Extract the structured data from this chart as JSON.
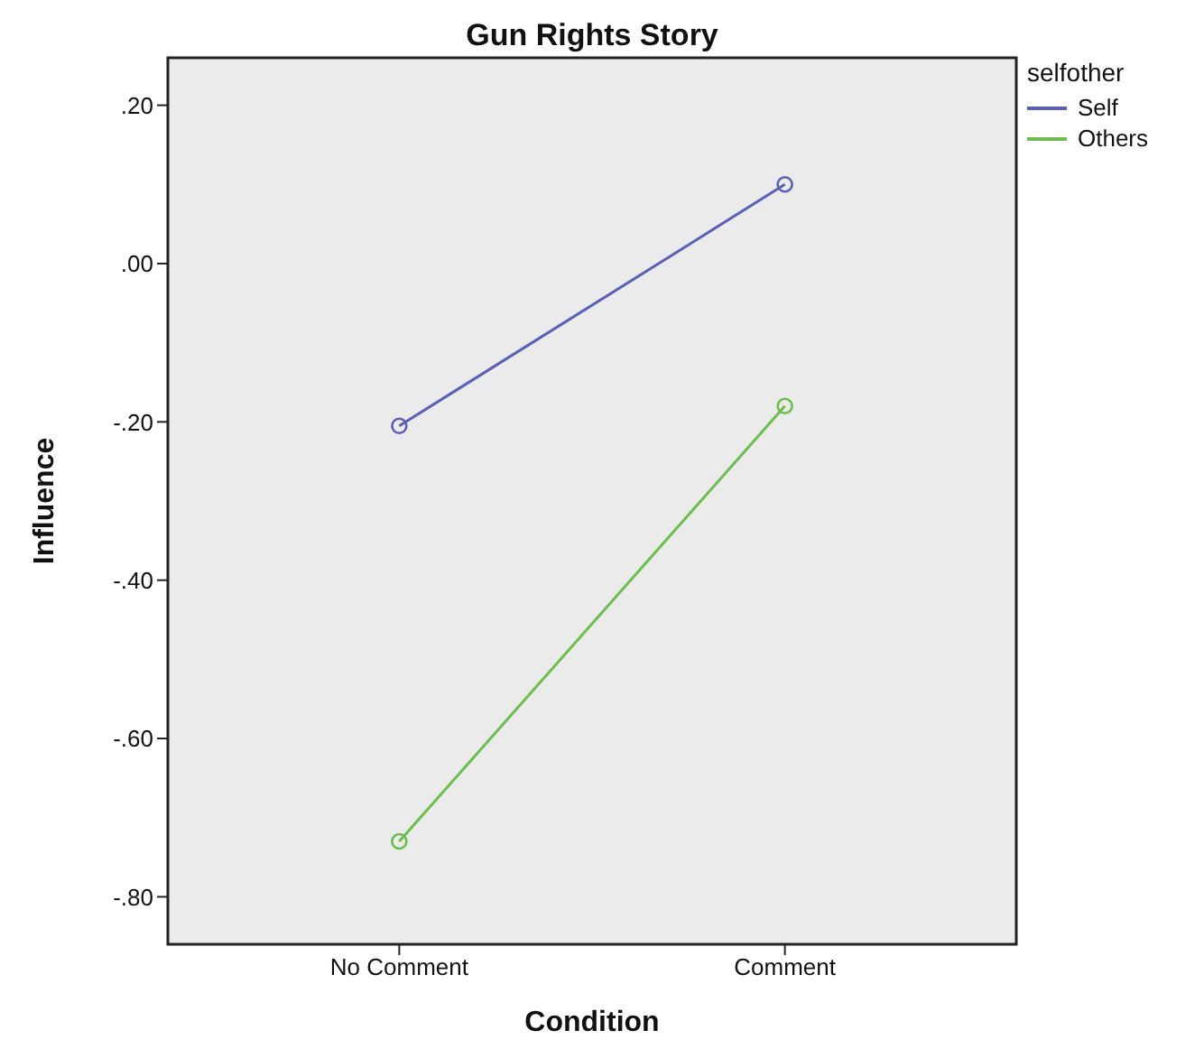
{
  "chart_data": {
    "type": "line",
    "title": "Gun Rights Story",
    "xlabel": "Condition",
    "ylabel": "Influence",
    "legend_title": "selfother",
    "legend": "top right",
    "marker": "circle",
    "categories": [
      "No Comment",
      "Comment"
    ],
    "ylim": [
      -0.86,
      0.26
    ],
    "yticks": [
      {
        "value": 0.2,
        "label": ".20"
      },
      {
        "value": 0,
        "label": ".00"
      },
      {
        "value": -0.2,
        "label": "-.20"
      },
      {
        "value": -0.4,
        "label": "-.40"
      },
      {
        "value": -0.6,
        "label": "-.60"
      },
      {
        "value": -0.8,
        "label": "-.80"
      }
    ],
    "series": [
      {
        "name": "Self",
        "color": "#5a5fb8",
        "values": [
          -0.205,
          0.1
        ]
      },
      {
        "name": "Others",
        "color": "#6abf4b",
        "values": [
          -0.73,
          -0.18
        ]
      }
    ]
  }
}
